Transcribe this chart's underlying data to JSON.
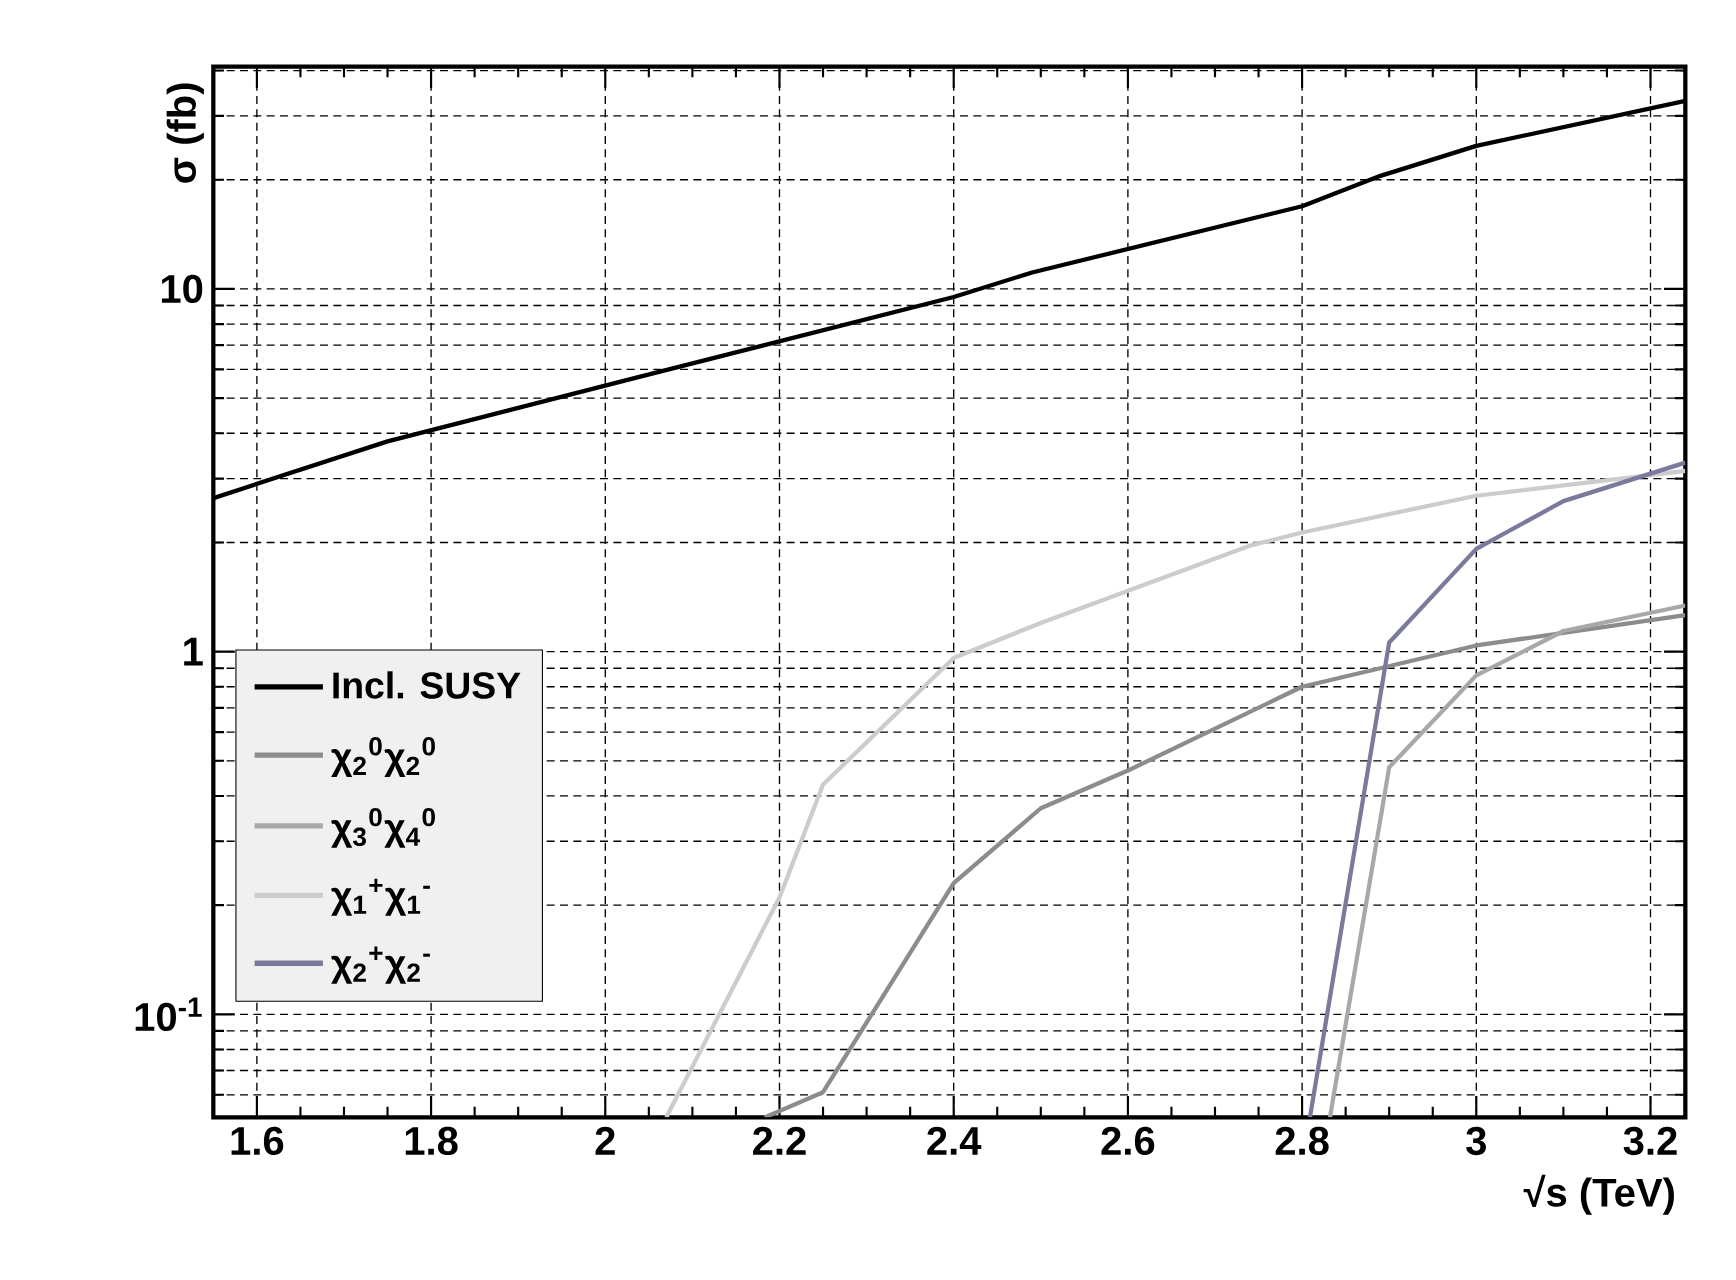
{
  "chart_data": {
    "type": "line",
    "xlabel": "√s (TeV)",
    "ylabel": "σ (fb)",
    "xlim": [
      1.55,
      3.24
    ],
    "ylim": [
      0.052,
      41
    ],
    "log": "y",
    "grid": true,
    "legend": "bottom left",
    "marker": "none",
    "line_style": "solid",
    "xticks": [
      1.6,
      1.8,
      2,
      2.2,
      2.4,
      2.6,
      2.8,
      3,
      3.2
    ],
    "yticks": [
      {
        "value": 0.1,
        "label": "10$^{-1}$"
      },
      1,
      10
    ],
    "series": [
      {
        "name": "Incl. SUSY",
        "color": "#000000",
        "x": [
          1.55,
          1.75,
          2.03,
          2.4,
          2.49,
          2.8,
          2.89,
          3.0,
          3.24
        ],
        "values": [
          2.65,
          3.8,
          5.65,
          9.5,
          11.1,
          16.9,
          20.5,
          24.8,
          33
        ]
      },
      {
        "name": "χ$_{2}$$^{0}$χ$_{2}$$^{0}$",
        "color": "#8c8c8c",
        "x": [
          2.183,
          2.25,
          2.4,
          2.5,
          2.6,
          2.8,
          3.0,
          3.24
        ],
        "values": [
          0.052,
          0.061,
          0.23,
          0.37,
          0.47,
          0.8,
          1.04,
          1.26
        ]
      },
      {
        "name": "χ$_{3}$$^{0}$χ$_{4}$$^{0}$",
        "color": "#a8a8a8",
        "x": [
          2.832,
          2.9,
          3.0,
          3.1,
          3.24
        ],
        "values": [
          0.052,
          0.48,
          0.86,
          1.14,
          1.34
        ]
      },
      {
        "name": "χ$_{1}$$^{+}$χ$_{1}$$^{-}$",
        "color": "#cccccc",
        "x": [
          2.07,
          2.2,
          2.25,
          2.4,
          2.5,
          2.74,
          2.8,
          3.0,
          3.24
        ],
        "values": [
          0.052,
          0.21,
          0.43,
          0.96,
          1.2,
          1.96,
          2.13,
          2.69,
          3.15
        ]
      },
      {
        "name": "χ$_{2}$$^{+}$χ$_{2}$$^{-}$",
        "color": "#7a7a9c",
        "x": [
          2.809,
          2.9,
          3.0,
          3.1,
          3.24
        ],
        "values": [
          0.052,
          1.06,
          1.92,
          2.6,
          3.32
        ]
      }
    ]
  }
}
